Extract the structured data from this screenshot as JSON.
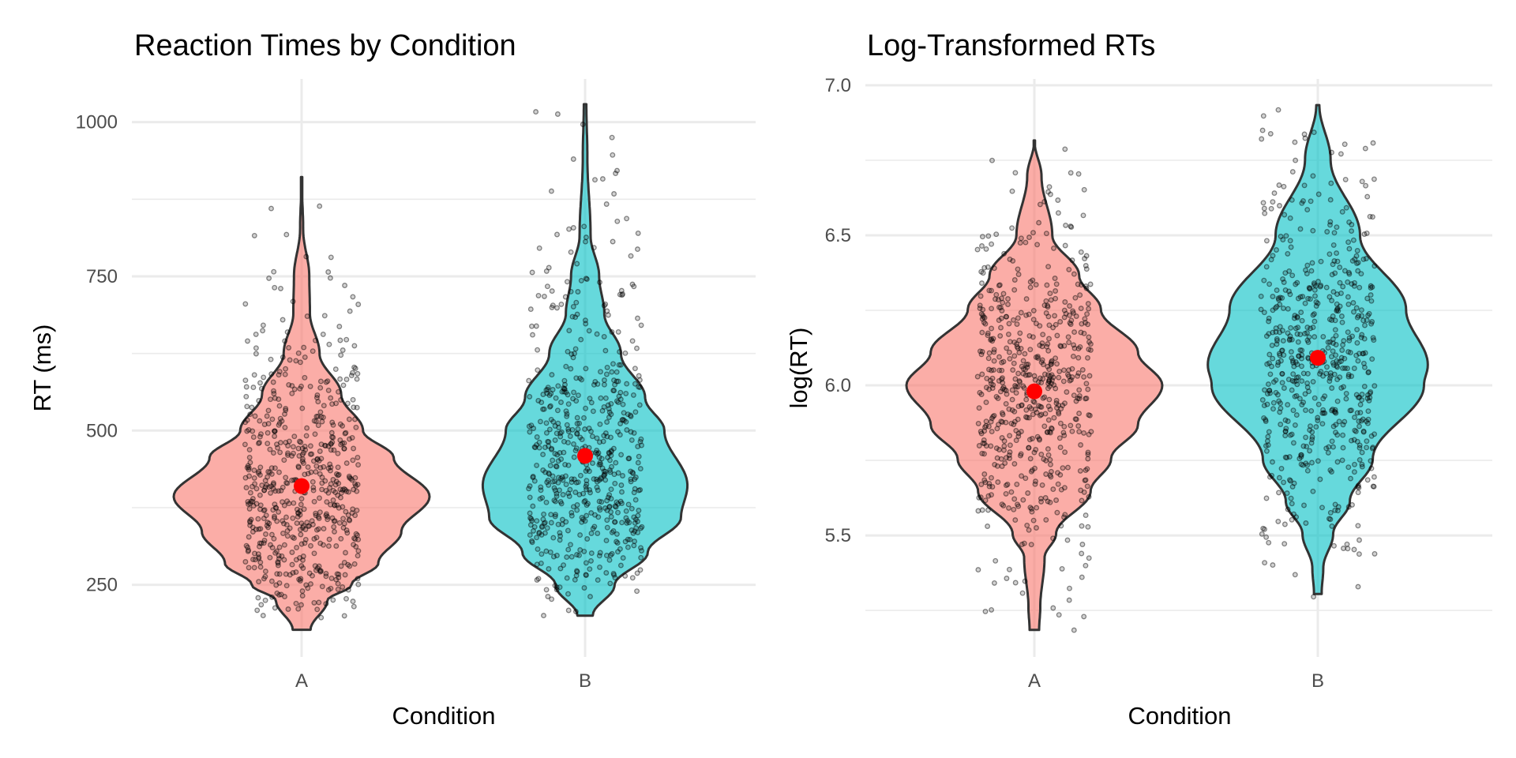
{
  "chart_data": [
    {
      "type": "violin",
      "title": "Reaction Times by Condition",
      "xlabel": "Condition",
      "ylabel": "RT (ms)",
      "categories": [
        "A",
        "B"
      ],
      "ylim": [
        133,
        1070
      ],
      "y_major_ticks": [
        250,
        500,
        750,
        1000
      ],
      "y_major_tick_labels": [
        "250",
        "500",
        "750",
        "1000"
      ],
      "y_minor_ticks": [
        375,
        625,
        875
      ],
      "grid": true,
      "legend": "none",
      "groups": [
        {
          "name": "A",
          "fill": "#F8766D",
          "min": 177,
          "max": 911,
          "mean": 410,
          "mode": 393,
          "n_points": 600,
          "density_profile": [
            [
              177,
              0.07
            ],
            [
              224,
              0.2
            ],
            [
              250,
              0.39
            ],
            [
              285,
              0.6
            ],
            [
              336,
              0.78
            ],
            [
              393,
              1.0
            ],
            [
              456,
              0.72
            ],
            [
              500,
              0.48
            ],
            [
              558,
              0.31
            ],
            [
              625,
              0.14
            ],
            [
              690,
              0.065
            ],
            [
              750,
              0.06
            ],
            [
              826,
              0.012
            ],
            [
              911,
              0.0
            ]
          ]
        },
        {
          "name": "B",
          "fill": "#00BFC4",
          "min": 200,
          "max": 1029,
          "mean": 459,
          "mode": 411,
          "n_points": 600,
          "density_profile": [
            [
              200,
              0.06
            ],
            [
              249,
              0.23
            ],
            [
              302,
              0.49
            ],
            [
              359,
              0.75
            ],
            [
              411,
              0.8
            ],
            [
              500,
              0.62
            ],
            [
              553,
              0.47
            ],
            [
              625,
              0.28
            ],
            [
              690,
              0.15
            ],
            [
              750,
              0.11
            ],
            [
              816,
              0.043
            ],
            [
              942,
              0.018
            ],
            [
              1029,
              0.01
            ]
          ]
        }
      ]
    },
    {
      "type": "violin",
      "title": "Log-Transformed RTs",
      "xlabel": "Condition",
      "ylabel": "log(RT)",
      "categories": [
        "A",
        "B"
      ],
      "ylim": [
        5.095,
        7.021
      ],
      "y_major_ticks": [
        5.5,
        6.0,
        6.5,
        7.0
      ],
      "y_major_tick_labels": [
        "5.5",
        "6.0",
        "6.5",
        "7.0"
      ],
      "y_minor_ticks": [
        5.25,
        5.75,
        6.25,
        6.75
      ],
      "grid": true,
      "legend": "none",
      "groups": [
        {
          "name": "A",
          "fill": "#F8766D",
          "min": 5.185,
          "max": 6.816,
          "mean": 5.98,
          "mode": 6.0,
          "n_points": 600,
          "density_profile": [
            [
              5.185,
              0.037
            ],
            [
              5.258,
              0.046
            ],
            [
              5.426,
              0.08
            ],
            [
              5.505,
              0.17
            ],
            [
              5.647,
              0.44
            ],
            [
              5.755,
              0.6
            ],
            [
              5.868,
              0.81
            ],
            [
              6.0,
              1.0
            ],
            [
              6.11,
              0.81
            ],
            [
              6.253,
              0.52
            ],
            [
              6.366,
              0.35
            ],
            [
              6.5,
              0.14
            ],
            [
              6.697,
              0.056
            ],
            [
              6.816,
              0.0
            ]
          ]
        },
        {
          "name": "B",
          "fill": "#00BFC4",
          "min": 5.305,
          "max": 6.934,
          "mean": 6.092,
          "mode": 6.068,
          "n_points": 600,
          "density_profile": [
            [
              5.305,
              0.03
            ],
            [
              5.392,
              0.043
            ],
            [
              5.505,
              0.12
            ],
            [
              5.613,
              0.25
            ],
            [
              5.755,
              0.43
            ],
            [
              6.0,
              0.83
            ],
            [
              6.068,
              0.86
            ],
            [
              6.253,
              0.69
            ],
            [
              6.5,
              0.33
            ],
            [
              6.752,
              0.1
            ],
            [
              6.934,
              0.012
            ]
          ]
        }
      ]
    }
  ],
  "colors": {
    "group_A": "#F8766D",
    "group_B": "#00BFC4",
    "mean_marker": "#FF0000",
    "violin_outline": "#333333",
    "gridline": "#EBEBEB",
    "point": "#000000"
  },
  "fill_alpha": 0.6,
  "point_alpha": 0.3
}
